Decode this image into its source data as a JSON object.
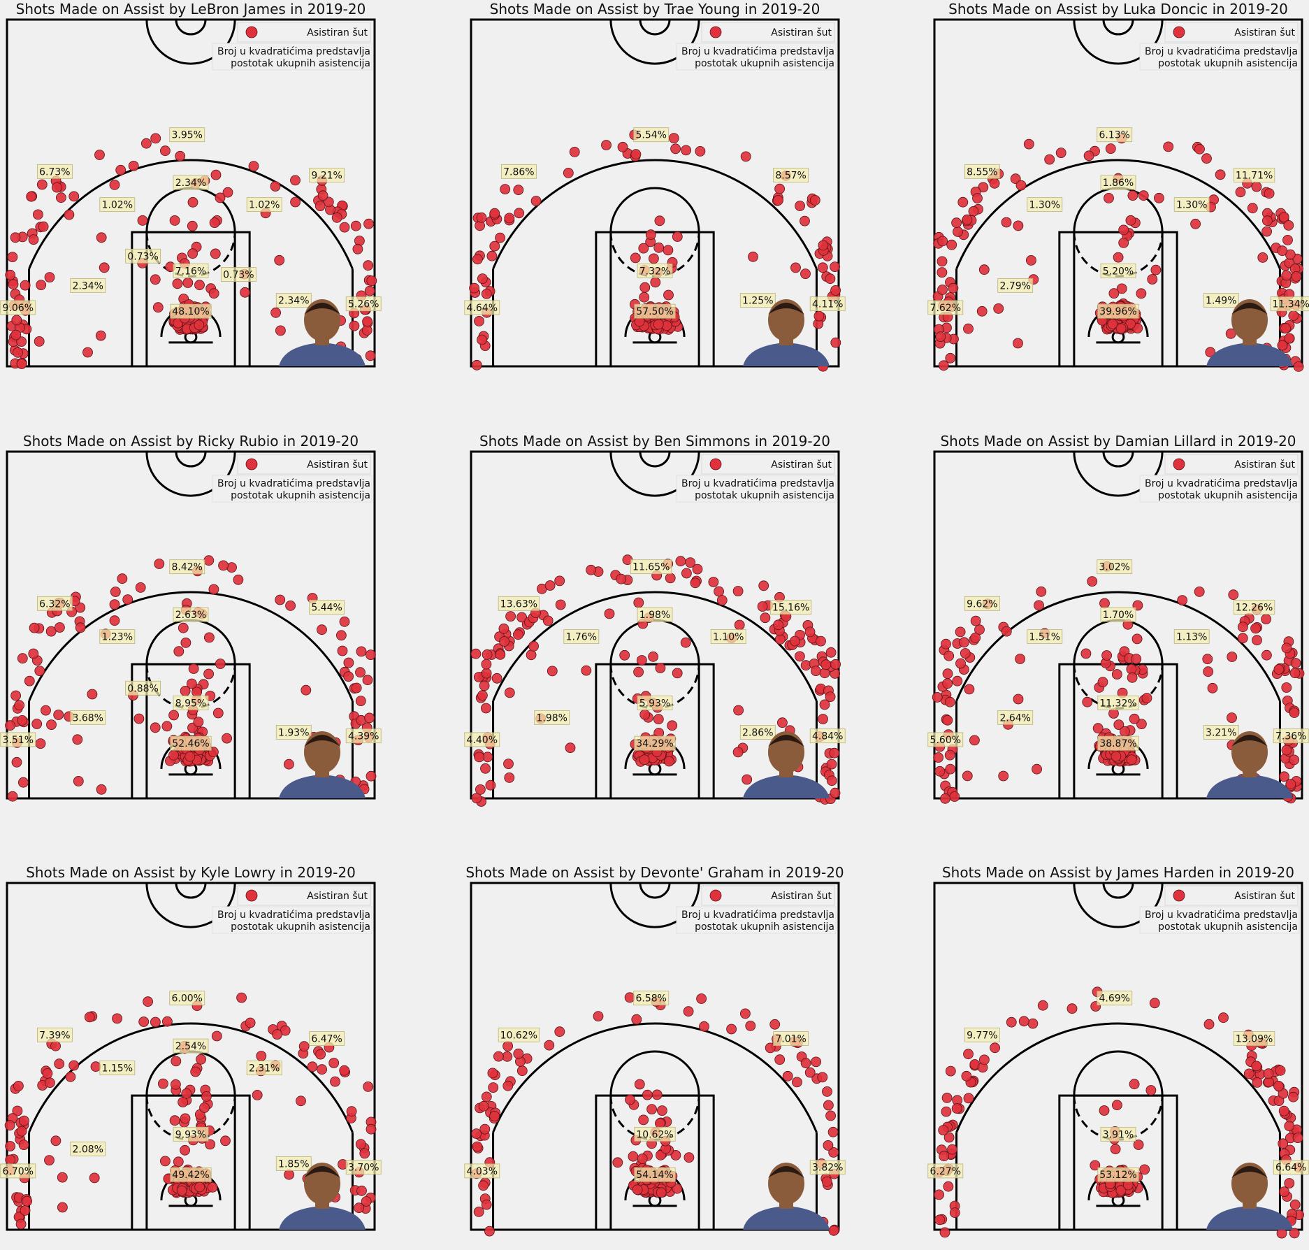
{
  "legend": {
    "marker_label": "Asistiran šut",
    "note_line1": "Broj u kvadratićima predstavlja",
    "note_line2": "postotak ukupnih asistencija"
  },
  "colors": {
    "background": "#f0f0f0",
    "dot_fill": "#e0323c",
    "dot_edge": "#5a1418",
    "label_box": "#f5efb0",
    "court_line": "#000000"
  },
  "charts": [
    {
      "title": "Shots Made on Assist by LeBron James in 2019-20",
      "player_icon": "lebron-james-portrait",
      "zones": [
        {
          "zone": "left-corner-3",
          "label": "9.06%"
        },
        {
          "zone": "left-wing-3",
          "label": "6.73%"
        },
        {
          "zone": "top-3",
          "label": "3.95%"
        },
        {
          "zone": "right-wing-3",
          "label": "9.21%"
        },
        {
          "zone": "right-corner-3",
          "label": "5.26%"
        },
        {
          "zone": "left-midrange-elbow",
          "label": "1.02%"
        },
        {
          "zone": "top-midrange",
          "label": "2.34%"
        },
        {
          "zone": "right-midrange-elbow",
          "label": "1.02%"
        },
        {
          "zone": "left-baseline-mid",
          "label": "2.34%"
        },
        {
          "zone": "left-paint-mid",
          "label": "0.73%"
        },
        {
          "zone": "right-paint-mid",
          "label": "0.73%"
        },
        {
          "zone": "right-baseline-mid",
          "label": "2.34%"
        },
        {
          "zone": "paint",
          "label": "7.16%"
        },
        {
          "zone": "restricted-area",
          "label": "48.10%"
        }
      ]
    },
    {
      "title": "Shots Made on Assist by Trae Young in 2019-20",
      "player_icon": "trae-young-portrait",
      "zones": [
        {
          "zone": "left-corner-3",
          "label": "4.64%"
        },
        {
          "zone": "left-wing-3",
          "label": "7.86%"
        },
        {
          "zone": "top-3",
          "label": "5.54%"
        },
        {
          "zone": "right-wing-3",
          "label": "8.57%"
        },
        {
          "zone": "right-corner-3",
          "label": "4.11%"
        },
        {
          "zone": "paint",
          "label": "7.32%"
        },
        {
          "zone": "right-baseline-mid",
          "label": "1.25%"
        },
        {
          "zone": "restricted-area",
          "label": "57.50%"
        }
      ]
    },
    {
      "title": "Shots Made on Assist by Luka Doncic in 2019-20",
      "player_icon": "luka-doncic-portrait",
      "zones": [
        {
          "zone": "left-corner-3",
          "label": "7.62%"
        },
        {
          "zone": "left-wing-3",
          "label": "8.55%"
        },
        {
          "zone": "top-3",
          "label": "6.13%"
        },
        {
          "zone": "right-wing-3",
          "label": "11.71%"
        },
        {
          "zone": "right-corner-3",
          "label": "11.34%"
        },
        {
          "zone": "left-midrange-elbow",
          "label": "1.30%"
        },
        {
          "zone": "top-midrange",
          "label": "1.86%"
        },
        {
          "zone": "right-midrange-elbow",
          "label": "1.30%"
        },
        {
          "zone": "left-baseline-mid",
          "label": "2.79%"
        },
        {
          "zone": "paint",
          "label": "5.20%"
        },
        {
          "zone": "right-baseline-mid",
          "label": "1.49%"
        },
        {
          "zone": "restricted-area",
          "label": "39.96%"
        }
      ]
    },
    {
      "title": "Shots Made on Assist by Ricky Rubio in 2019-20",
      "player_icon": "ricky-rubio-portrait",
      "zones": [
        {
          "zone": "left-corner-3",
          "label": "3.51%"
        },
        {
          "zone": "left-wing-3",
          "label": "6.32%"
        },
        {
          "zone": "top-3",
          "label": "8.42%"
        },
        {
          "zone": "right-wing-3",
          "label": "5.44%"
        },
        {
          "zone": "right-corner-3",
          "label": "4.39%"
        },
        {
          "zone": "left-midrange-elbow",
          "label": "1.23%"
        },
        {
          "zone": "top-midrange",
          "label": "2.63%"
        },
        {
          "zone": "left-baseline-mid",
          "label": "3.68%"
        },
        {
          "zone": "left-paint-mid",
          "label": "0.88%"
        },
        {
          "zone": "paint",
          "label": "8.95%"
        },
        {
          "zone": "right-baseline-mid",
          "label": "1.93%"
        },
        {
          "zone": "restricted-area",
          "label": "52.46%"
        }
      ]
    },
    {
      "title": "Shots Made on Assist by Ben Simmons in 2019-20",
      "player_icon": "ben-simmons-portrait",
      "zones": [
        {
          "zone": "left-corner-3",
          "label": "4.40%"
        },
        {
          "zone": "left-wing-3",
          "label": "13.63%"
        },
        {
          "zone": "top-3",
          "label": "11.65%"
        },
        {
          "zone": "right-wing-3",
          "label": "15.16%"
        },
        {
          "zone": "right-corner-3",
          "label": "4.84%"
        },
        {
          "zone": "left-midrange-elbow",
          "label": "1.76%"
        },
        {
          "zone": "top-midrange",
          "label": "1.98%"
        },
        {
          "zone": "right-midrange-elbow",
          "label": "1.10%"
        },
        {
          "zone": "left-baseline-mid",
          "label": "1.98%"
        },
        {
          "zone": "paint",
          "label": "5.93%"
        },
        {
          "zone": "right-baseline-mid",
          "label": "2.86%"
        },
        {
          "zone": "restricted-area",
          "label": "34.29%"
        }
      ]
    },
    {
      "title": "Shots Made on Assist by Damian Lillard in 2019-20",
      "player_icon": "damian-lillard-portrait",
      "zones": [
        {
          "zone": "left-corner-3",
          "label": "5.60%"
        },
        {
          "zone": "left-wing-3",
          "label": "9.62%"
        },
        {
          "zone": "top-3",
          "label": "3.02%"
        },
        {
          "zone": "right-wing-3",
          "label": "12.26%"
        },
        {
          "zone": "right-corner-3",
          "label": "7.36%"
        },
        {
          "zone": "left-midrange-elbow",
          "label": "1.51%"
        },
        {
          "zone": "top-midrange",
          "label": "1.70%"
        },
        {
          "zone": "right-midrange-elbow",
          "label": "1.13%"
        },
        {
          "zone": "left-baseline-mid",
          "label": "2.64%"
        },
        {
          "zone": "paint",
          "label": "11.32%"
        },
        {
          "zone": "right-baseline-mid",
          "label": "3.21%"
        },
        {
          "zone": "restricted-area",
          "label": "38.87%"
        }
      ]
    },
    {
      "title": "Shots Made on Assist by Kyle Lowry in 2019-20",
      "player_icon": "kyle-lowry-portrait",
      "zones": [
        {
          "zone": "left-corner-3",
          "label": "6.70%"
        },
        {
          "zone": "left-wing-3",
          "label": "7.39%"
        },
        {
          "zone": "top-3",
          "label": "6.00%"
        },
        {
          "zone": "right-wing-3",
          "label": "6.47%"
        },
        {
          "zone": "right-corner-3",
          "label": "3.70%"
        },
        {
          "zone": "left-midrange-elbow",
          "label": "1.15%"
        },
        {
          "zone": "top-midrange",
          "label": "2.54%"
        },
        {
          "zone": "right-midrange-elbow",
          "label": "2.31%"
        },
        {
          "zone": "left-baseline-mid",
          "label": "2.08%"
        },
        {
          "zone": "paint",
          "label": "9.93%"
        },
        {
          "zone": "right-baseline-mid",
          "label": "1.85%"
        },
        {
          "zone": "restricted-area",
          "label": "49.42%"
        }
      ]
    },
    {
      "title": "Shots Made on Assist by Devonte' Graham in 2019-20",
      "player_icon": "devonte-graham-portrait",
      "zones": [
        {
          "zone": "left-corner-3",
          "label": "4.03%"
        },
        {
          "zone": "left-wing-3",
          "label": "10.62%"
        },
        {
          "zone": "top-3",
          "label": "6.58%"
        },
        {
          "zone": "right-wing-3",
          "label": "7.01%"
        },
        {
          "zone": "right-corner-3",
          "label": "3.82%"
        },
        {
          "zone": "paint",
          "label": "10.62%"
        },
        {
          "zone": "restricted-area",
          "label": "54.14%"
        }
      ]
    },
    {
      "title": "Shots Made on Assist by James Harden in 2019-20",
      "player_icon": "james-harden-portrait",
      "zones": [
        {
          "zone": "left-corner-3",
          "label": "6.27%"
        },
        {
          "zone": "left-wing-3",
          "label": "9.77%"
        },
        {
          "zone": "top-3",
          "label": "4.69%"
        },
        {
          "zone": "right-wing-3",
          "label": "13.09%"
        },
        {
          "zone": "right-corner-3",
          "label": "6.64%"
        },
        {
          "zone": "paint",
          "label": "3.91%"
        },
        {
          "zone": "restricted-area",
          "label": "53.12%"
        }
      ]
    }
  ],
  "chart_data": [
    {
      "type": "scatter",
      "title": "Shots Made on Assist by LeBron James in 2019-20",
      "series": [
        {
          "name": "Asistiran šut"
        }
      ],
      "zone_percentages": {
        "left-corner-3": 9.06,
        "left-wing-3": 6.73,
        "top-3": 3.95,
        "right-wing-3": 9.21,
        "right-corner-3": 5.26,
        "left-midrange-elbow": 1.02,
        "top-midrange": 2.34,
        "right-midrange-elbow": 1.02,
        "left-baseline-mid": 2.34,
        "left-paint-mid": 0.73,
        "right-paint-mid": 0.73,
        "right-baseline-mid": 2.34,
        "paint": 7.16,
        "restricted-area": 48.1
      },
      "legend": "upper right"
    },
    {
      "type": "scatter",
      "title": "Shots Made on Assist by Trae Young in 2019-20",
      "series": [
        {
          "name": "Asistiran šut"
        }
      ],
      "zone_percentages": {
        "left-corner-3": 4.64,
        "left-wing-3": 7.86,
        "top-3": 5.54,
        "right-wing-3": 8.57,
        "right-corner-3": 4.11,
        "paint": 7.32,
        "right-baseline-mid": 1.25,
        "restricted-area": 57.5
      },
      "legend": "upper right"
    },
    {
      "type": "scatter",
      "title": "Shots Made on Assist by Luka Doncic in 2019-20",
      "series": [
        {
          "name": "Asistiran šut"
        }
      ],
      "zone_percentages": {
        "left-corner-3": 7.62,
        "left-wing-3": 8.55,
        "top-3": 6.13,
        "right-wing-3": 11.71,
        "right-corner-3": 11.34,
        "left-midrange-elbow": 1.3,
        "top-midrange": 1.86,
        "right-midrange-elbow": 1.3,
        "left-baseline-mid": 2.79,
        "paint": 5.2,
        "right-baseline-mid": 1.49,
        "restricted-area": 39.96
      },
      "legend": "upper right"
    },
    {
      "type": "scatter",
      "title": "Shots Made on Assist by Ricky Rubio in 2019-20",
      "series": [
        {
          "name": "Asistiran šut"
        }
      ],
      "zone_percentages": {
        "left-corner-3": 3.51,
        "left-wing-3": 6.32,
        "top-3": 8.42,
        "right-wing-3": 5.44,
        "right-corner-3": 4.39,
        "left-midrange-elbow": 1.23,
        "top-midrange": 2.63,
        "left-baseline-mid": 3.68,
        "left-paint-mid": 0.88,
        "paint": 8.95,
        "right-baseline-mid": 1.93,
        "restricted-area": 52.46
      },
      "legend": "upper right"
    },
    {
      "type": "scatter",
      "title": "Shots Made on Assist by Ben Simmons in 2019-20",
      "series": [
        {
          "name": "Asistiran šut"
        }
      ],
      "zone_percentages": {
        "left-corner-3": 4.4,
        "left-wing-3": 13.63,
        "top-3": 11.65,
        "right-wing-3": 15.16,
        "right-corner-3": 4.84,
        "left-midrange-elbow": 1.76,
        "top-midrange": 1.98,
        "right-midrange-elbow": 1.1,
        "left-baseline-mid": 1.98,
        "paint": 5.93,
        "right-baseline-mid": 2.86,
        "restricted-area": 34.29
      },
      "legend": "upper right"
    },
    {
      "type": "scatter",
      "title": "Shots Made on Assist by Damian Lillard in 2019-20",
      "series": [
        {
          "name": "Asistiran šut"
        }
      ],
      "zone_percentages": {
        "left-corner-3": 5.6,
        "left-wing-3": 9.62,
        "top-3": 3.02,
        "right-wing-3": 12.26,
        "right-corner-3": 7.36,
        "left-midrange-elbow": 1.51,
        "top-midrange": 1.7,
        "right-midrange-elbow": 1.13,
        "left-baseline-mid": 2.64,
        "paint": 11.32,
        "right-baseline-mid": 3.21,
        "restricted-area": 38.87
      },
      "legend": "upper right"
    },
    {
      "type": "scatter",
      "title": "Shots Made on Assist by Kyle Lowry in 2019-20",
      "series": [
        {
          "name": "Asistiran šut"
        }
      ],
      "zone_percentages": {
        "left-corner-3": 6.7,
        "left-wing-3": 7.39,
        "top-3": 6.0,
        "right-wing-3": 6.47,
        "right-corner-3": 3.7,
        "left-midrange-elbow": 1.15,
        "top-midrange": 2.54,
        "right-midrange-elbow": 2.31,
        "left-baseline-mid": 2.08,
        "paint": 9.93,
        "right-baseline-mid": 1.85,
        "restricted-area": 49.42
      },
      "legend": "upper right"
    },
    {
      "type": "scatter",
      "title": "Shots Made on Assist by Devonte' Graham in 2019-20",
      "series": [
        {
          "name": "Asistiran šut"
        }
      ],
      "zone_percentages": {
        "left-corner-3": 4.03,
        "left-wing-3": 10.62,
        "top-3": 6.58,
        "right-wing-3": 7.01,
        "right-corner-3": 3.82,
        "paint": 10.62,
        "restricted-area": 54.14
      },
      "legend": "upper right"
    },
    {
      "type": "scatter",
      "title": "Shots Made on Assist by James Harden in 2019-20",
      "series": [
        {
          "name": "Asistiran šut"
        }
      ],
      "zone_percentages": {
        "left-corner-3": 6.27,
        "left-wing-3": 9.77,
        "top-3": 4.69,
        "right-wing-3": 13.09,
        "right-corner-3": 6.64,
        "paint": 3.91,
        "restricted-area": 53.12
      },
      "legend": "upper right"
    }
  ]
}
